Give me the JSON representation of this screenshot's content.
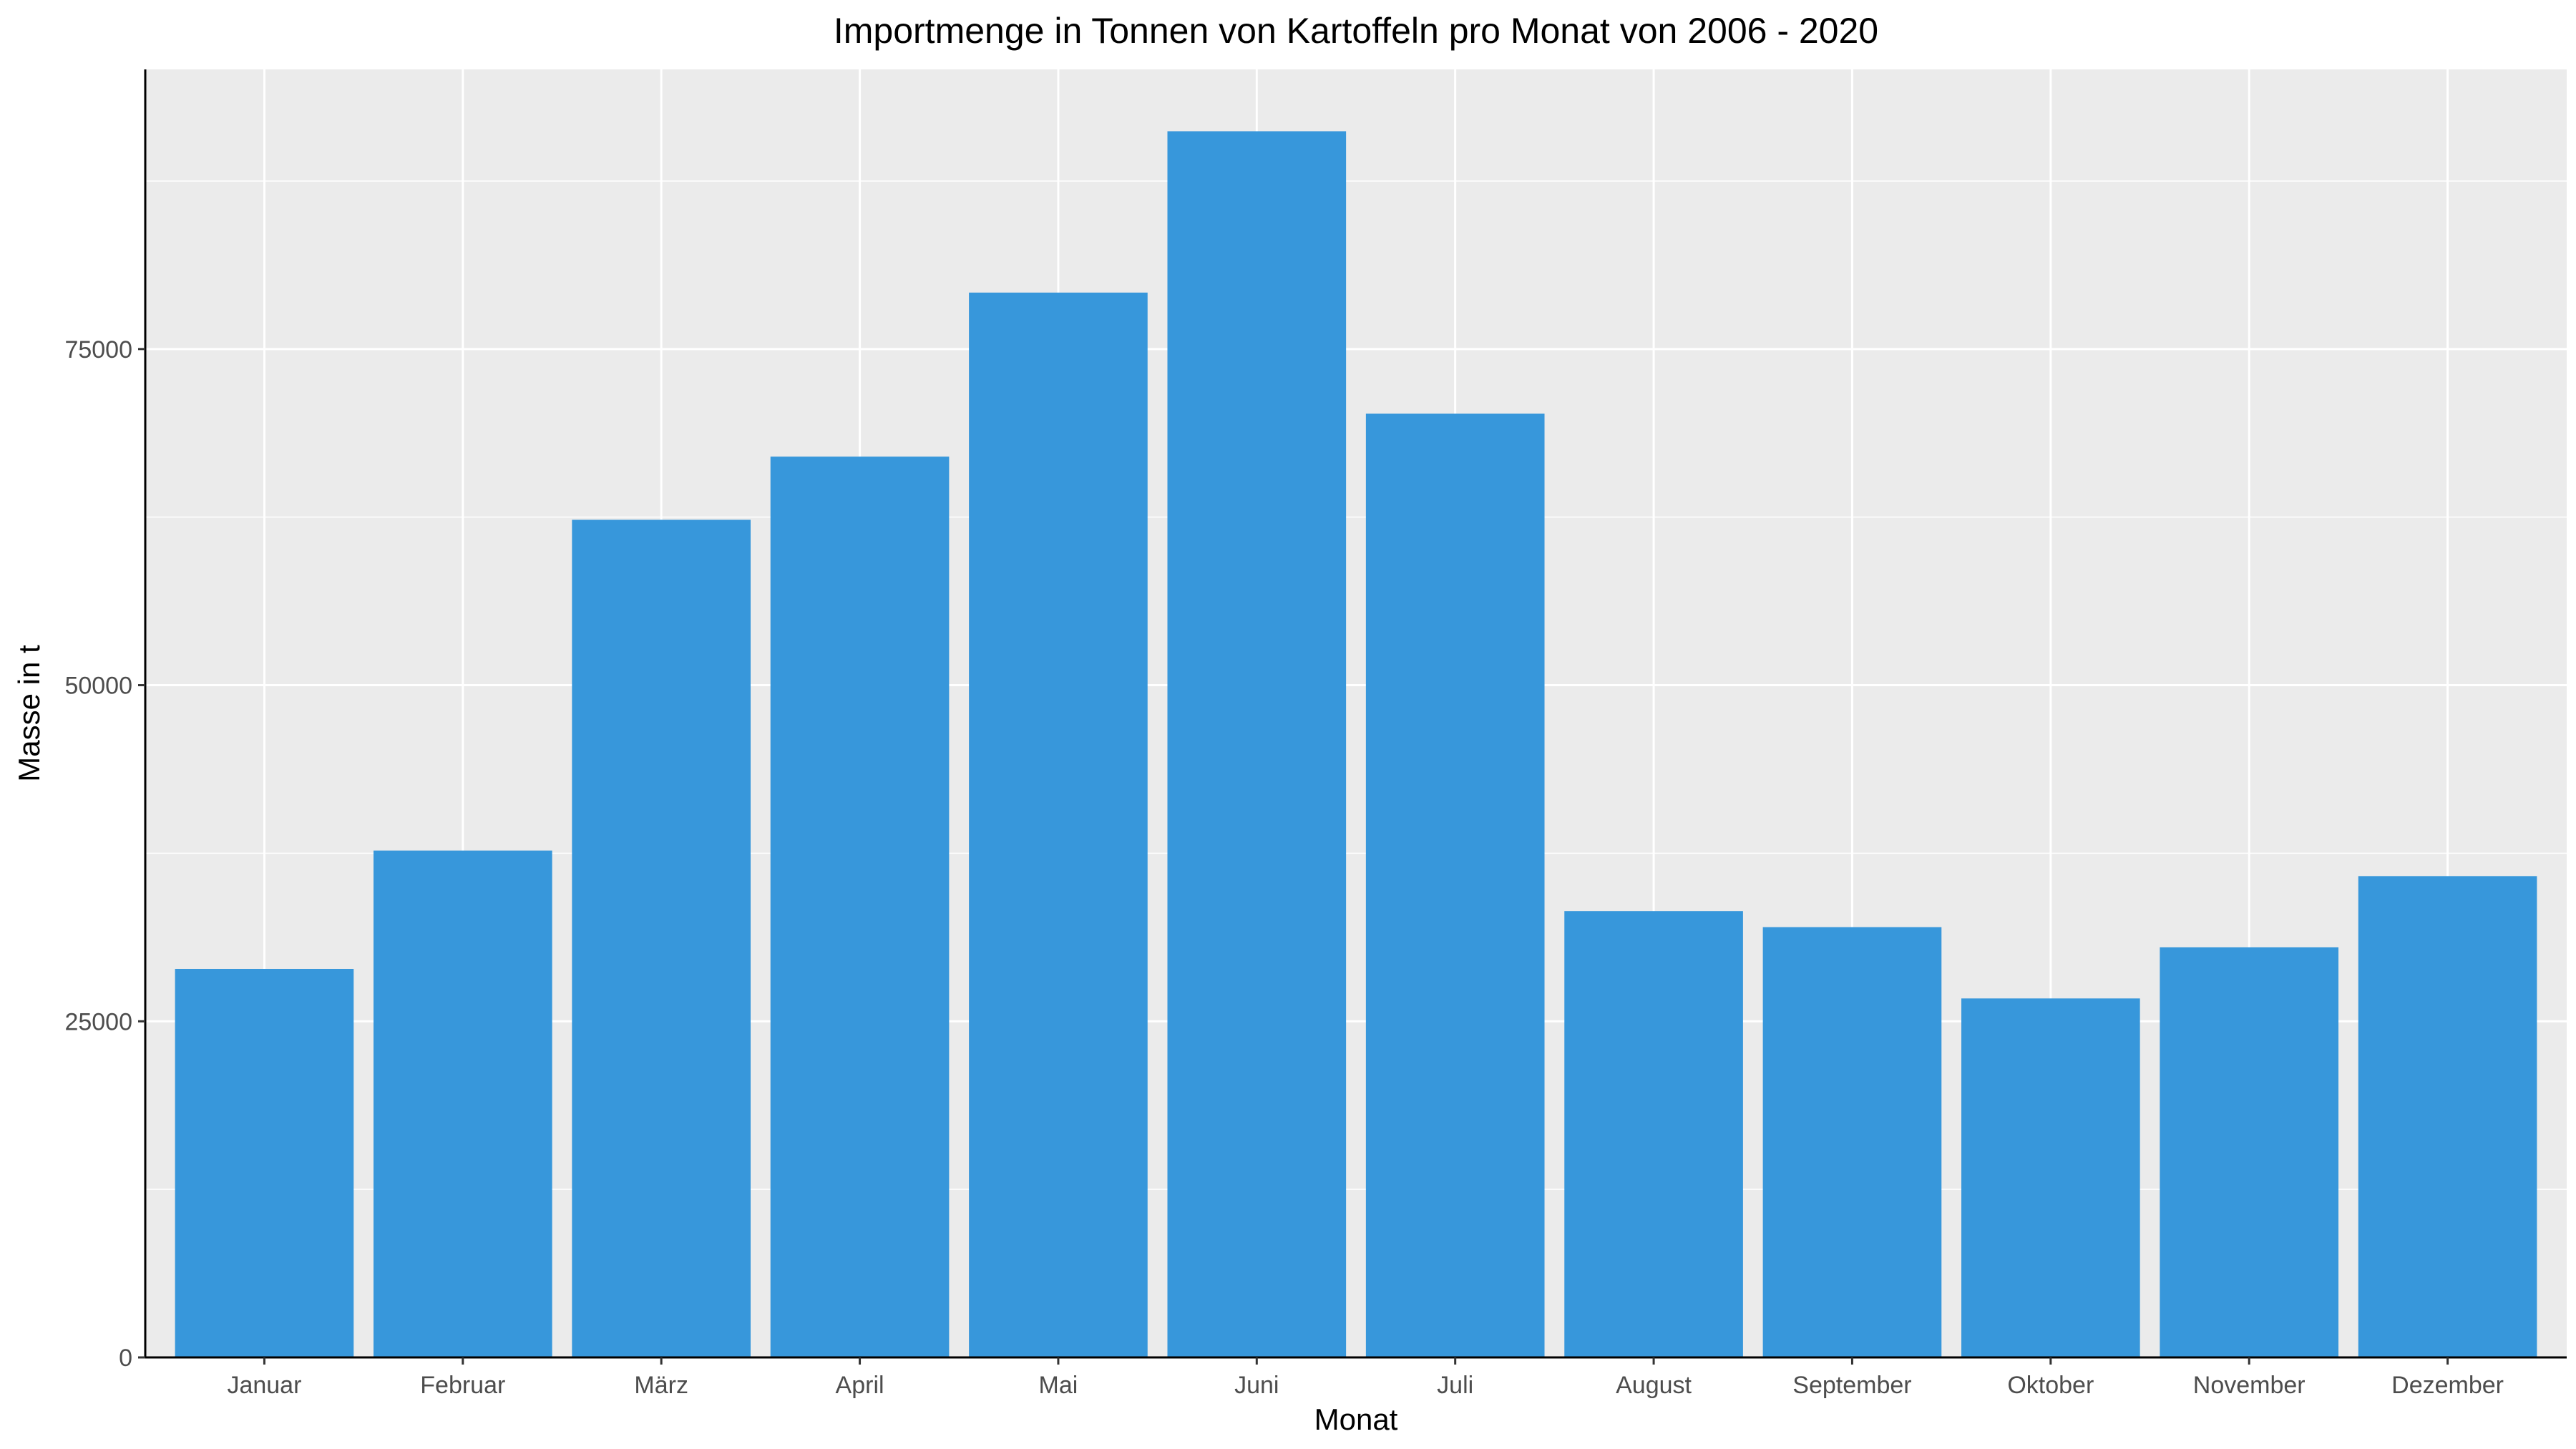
{
  "chart_data": {
    "type": "bar",
    "title": "Importmenge in Tonnen von Kartoffeln pro Monat von 2006 - 2020",
    "xlabel": "Monat",
    "ylabel": "Masse in t",
    "categories": [
      "Januar",
      "Februar",
      "März",
      "April",
      "Mai",
      "Juni",
      "Juli",
      "August",
      "September",
      "Oktober",
      "November",
      "Dezember"
    ],
    "values": [
      28900,
      37700,
      62300,
      67000,
      79200,
      91200,
      70200,
      33200,
      32000,
      26700,
      30500,
      35800
    ],
    "ylim": [
      0,
      95800
    ],
    "yticks": [
      0,
      25000,
      50000,
      75000
    ],
    "yticks_labels": [
      "0",
      "25000",
      "50000",
      "75000"
    ],
    "grid": true,
    "legend": "none",
    "colors": {
      "bar": "#3797db",
      "panel_background": "#ebebeb",
      "grid": "#ffffff",
      "axis_line": "#000000"
    }
  }
}
